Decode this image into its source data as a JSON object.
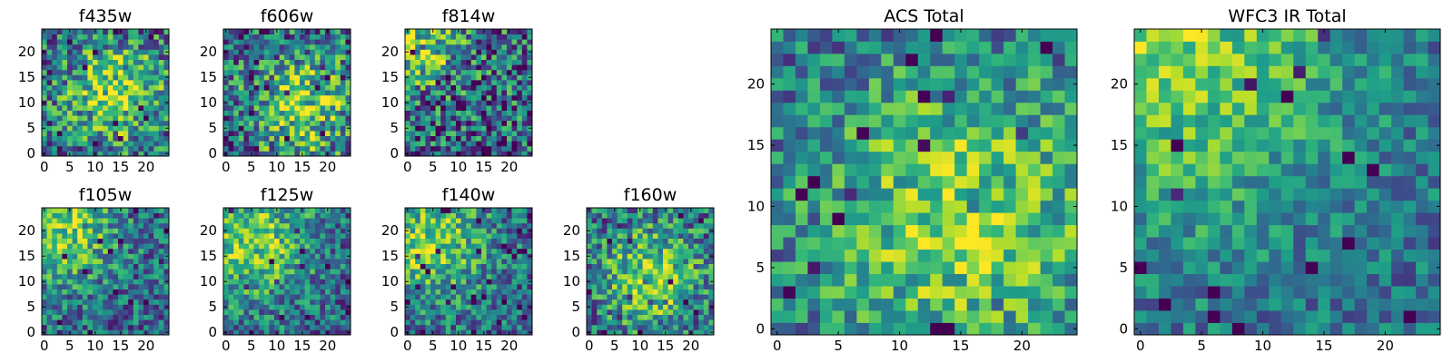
{
  "chart_data": [
    {
      "type": "heatmap",
      "title": "f435w",
      "grid_size": [
        25,
        25
      ],
      "xlim": [
        -0.5,
        24.5
      ],
      "ylim": [
        -0.5,
        24.5
      ],
      "xticks": [
        0,
        5,
        10,
        15,
        20
      ],
      "yticks": [
        0,
        5,
        10,
        15,
        20
      ],
      "colormap": "viridis",
      "value_range": [
        0,
        1
      ],
      "peak_center": [
        14,
        12
      ],
      "peak_width": 7,
      "noise": 0.38,
      "seed": 11
    },
    {
      "type": "heatmap",
      "title": "f606w",
      "grid_size": [
        25,
        25
      ],
      "xlim": [
        -0.5,
        24.5
      ],
      "ylim": [
        -0.5,
        24.5
      ],
      "xticks": [
        0,
        5,
        10,
        15,
        20
      ],
      "yticks": [
        0,
        5,
        10,
        15,
        20
      ],
      "colormap": "viridis",
      "value_range": [
        0,
        1
      ],
      "peak_center": [
        15,
        9
      ],
      "peak_width": 7,
      "noise": 0.4,
      "seed": 23
    },
    {
      "type": "heatmap",
      "title": "f814w",
      "grid_size": [
        25,
        25
      ],
      "xlim": [
        -0.5,
        24.5
      ],
      "ylim": [
        -0.5,
        24.5
      ],
      "xticks": [
        0,
        5,
        10,
        15,
        20
      ],
      "yticks": [
        0,
        5,
        10,
        15,
        20
      ],
      "colormap": "viridis",
      "value_range": [
        0,
        1
      ],
      "peak_center": [
        2,
        22
      ],
      "peak_width": 6,
      "noise": 0.42,
      "seed": 37
    },
    {
      "type": "heatmap",
      "title": "f105w",
      "grid_size": [
        25,
        25
      ],
      "xlim": [
        -0.5,
        24.5
      ],
      "ylim": [
        -0.5,
        24.5
      ],
      "xticks": [
        0,
        5,
        10,
        15,
        20
      ],
      "yticks": [
        0,
        5,
        10,
        15,
        20
      ],
      "colormap": "viridis",
      "value_range": [
        0,
        1
      ],
      "peak_center": [
        3,
        21
      ],
      "peak_width": 8,
      "noise": 0.3,
      "seed": 41
    },
    {
      "type": "heatmap",
      "title": "f125w",
      "grid_size": [
        25,
        25
      ],
      "xlim": [
        -0.5,
        24.5
      ],
      "ylim": [
        -0.5,
        24.5
      ],
      "xticks": [
        0,
        5,
        10,
        15,
        20
      ],
      "yticks": [
        0,
        5,
        10,
        15,
        20
      ],
      "colormap": "viridis",
      "value_range": [
        0,
        1
      ],
      "peak_center": [
        5,
        18
      ],
      "peak_width": 8,
      "noise": 0.3,
      "seed": 53
    },
    {
      "type": "heatmap",
      "title": "f140w",
      "grid_size": [
        25,
        25
      ],
      "xlim": [
        -0.5,
        24.5
      ],
      "ylim": [
        -0.5,
        24.5
      ],
      "xticks": [
        0,
        5,
        10,
        15,
        20
      ],
      "yticks": [
        0,
        5,
        10,
        15,
        20
      ],
      "colormap": "viridis",
      "value_range": [
        0,
        1
      ],
      "peak_center": [
        4,
        18
      ],
      "peak_width": 8,
      "noise": 0.3,
      "seed": 67
    },
    {
      "type": "heatmap",
      "title": "f160w",
      "grid_size": [
        25,
        25
      ],
      "xlim": [
        -0.5,
        24.5
      ],
      "ylim": [
        -0.5,
        24.5
      ],
      "xticks": [
        0,
        5,
        10,
        15,
        20
      ],
      "yticks": [
        0,
        5,
        10,
        15,
        20
      ],
      "colormap": "viridis",
      "value_range": [
        0,
        1
      ],
      "peak_center": [
        12,
        11
      ],
      "peak_width": 7,
      "noise": 0.34,
      "seed": 79
    },
    {
      "type": "heatmap",
      "title": "ACS Total",
      "grid_size": [
        25,
        25
      ],
      "xlim": [
        -0.5,
        24.5
      ],
      "ylim": [
        -0.5,
        24.5
      ],
      "xticks": [
        0,
        5,
        10,
        15,
        20
      ],
      "yticks": [
        0,
        5,
        10,
        15,
        20
      ],
      "colormap": "viridis",
      "value_range": [
        0,
        1
      ],
      "peak_center": [
        15,
        9
      ],
      "peak_width": 9,
      "noise": 0.28,
      "seed": 97
    },
    {
      "type": "heatmap",
      "title": "WFC3 IR Total",
      "grid_size": [
        25,
        25
      ],
      "xlim": [
        -0.5,
        24.5
      ],
      "ylim": [
        -0.5,
        24.5
      ],
      "xticks": [
        0,
        5,
        10,
        15,
        20
      ],
      "yticks": [
        0,
        5,
        10,
        15,
        20
      ],
      "colormap": "viridis",
      "value_range": [
        0,
        1
      ],
      "peak_center": [
        2,
        23
      ],
      "peak_width": 11,
      "noise": 0.22,
      "seed": 113
    }
  ]
}
